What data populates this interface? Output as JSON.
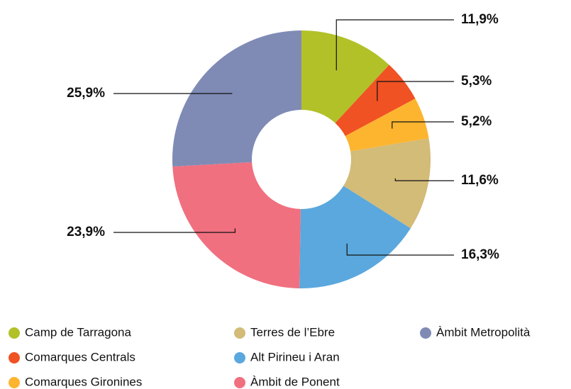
{
  "chart_data": {
    "type": "pie",
    "donut": true,
    "categories": [
      "Camp de Tarragona",
      "Comarques Centrals",
      "Comarques Gironines",
      "Terres de l’Ebre",
      "Alt Pirineu i Aran",
      "Àmbit de Ponent",
      "Àmbit Metropolità"
    ],
    "values": [
      11.9,
      5.3,
      5.2,
      11.6,
      16.3,
      23.9,
      25.9
    ],
    "value_labels": [
      "11,9%",
      "5,3%",
      "5,2%",
      "11,6%",
      "16,3%",
      "23,9%",
      "25,9%"
    ],
    "colors": [
      "#b2c128",
      "#f05223",
      "#fdb52f",
      "#d3bb78",
      "#5aa8dd",
      "#f07080",
      "#7f8bb5"
    ]
  }
}
